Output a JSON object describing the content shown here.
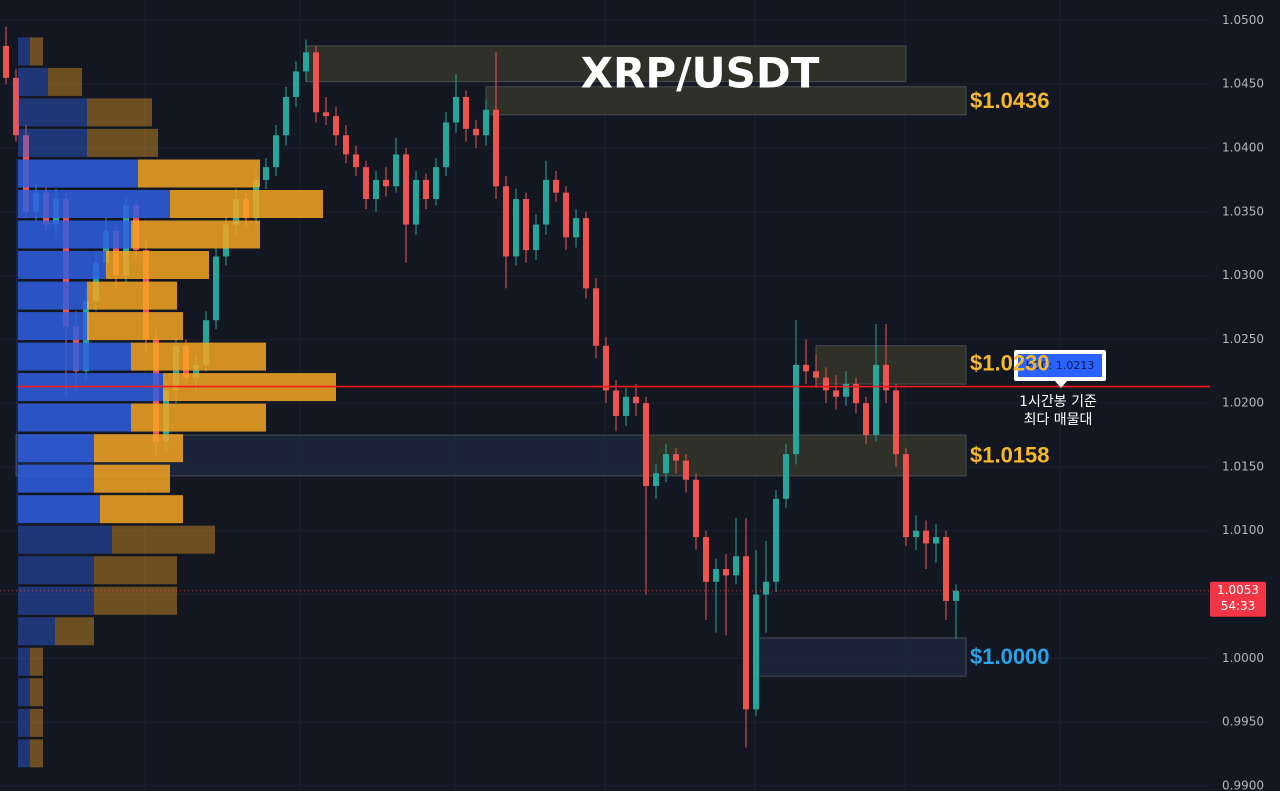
{
  "chart_data": {
    "type": "candlestick",
    "title": "XRP/USDT",
    "up_color": "#26a69a",
    "down_color": "#ef5350",
    "ylim": [
      0.9896,
      1.0516
    ],
    "yticks": [
      {
        "value": 1.05,
        "label": "1.0500"
      },
      {
        "value": 1.045,
        "label": "1.0450"
      },
      {
        "value": 1.04,
        "label": "1.0400"
      },
      {
        "value": 1.035,
        "label": "1.0350"
      },
      {
        "value": 1.03,
        "label": "1.0300"
      },
      {
        "value": 1.025,
        "label": "1.0250"
      },
      {
        "value": 1.02,
        "label": "1.0200"
      },
      {
        "value": 1.015,
        "label": "1.0150"
      },
      {
        "value": 1.01,
        "label": "1.0100"
      },
      {
        "value": 1.005,
        "label": "1.0050"
      },
      {
        "value": 1.0,
        "label": "1.0000"
      },
      {
        "value": 0.995,
        "label": "0.9950"
      },
      {
        "value": 0.99,
        "label": "0.9900"
      }
    ],
    "grid": true,
    "ohlc": [
      [
        1.048,
        1.0495,
        1.045,
        1.0455
      ],
      [
        1.0455,
        1.0462,
        1.0405,
        1.041
      ],
      [
        1.041,
        1.0418,
        1.0345,
        1.035
      ],
      [
        1.035,
        1.0372,
        1.0342,
        1.0365
      ],
      [
        1.0365,
        1.037,
        1.0335,
        1.034
      ],
      [
        1.034,
        1.0368,
        1.033,
        1.036
      ],
      [
        1.036,
        1.0365,
        1.0205,
        1.026
      ],
      [
        1.026,
        1.0272,
        1.021,
        1.0225
      ],
      [
        1.0225,
        1.029,
        1.0218,
        1.028
      ],
      [
        1.028,
        1.0318,
        1.0272,
        1.031
      ],
      [
        1.031,
        1.0345,
        1.03,
        1.0335
      ],
      [
        1.0335,
        1.034,
        1.029,
        1.03
      ],
      [
        1.03,
        1.0362,
        1.0295,
        1.0355
      ],
      [
        1.0355,
        1.036,
        1.0312,
        1.032
      ],
      [
        1.032,
        1.0328,
        1.024,
        1.025
      ],
      [
        1.025,
        1.0258,
        1.0158,
        1.017
      ],
      [
        1.017,
        1.0218,
        1.0162,
        1.021
      ],
      [
        1.021,
        1.0252,
        1.02,
        1.0245
      ],
      [
        1.0245,
        1.025,
        1.0212,
        1.022
      ],
      [
        1.022,
        1.0238,
        1.0208,
        1.023
      ],
      [
        1.023,
        1.0272,
        1.0225,
        1.0265
      ],
      [
        1.0265,
        1.0322,
        1.0258,
        1.0315
      ],
      [
        1.0315,
        1.0348,
        1.0308,
        1.034
      ],
      [
        1.034,
        1.0368,
        1.0332,
        1.036
      ],
      [
        1.036,
        1.0365,
        1.0338,
        1.0345
      ],
      [
        1.0345,
        1.0382,
        1.0338,
        1.0375
      ],
      [
        1.0375,
        1.0392,
        1.0368,
        1.0385
      ],
      [
        1.0385,
        1.0418,
        1.0378,
        1.041
      ],
      [
        1.041,
        1.0448,
        1.0402,
        1.044
      ],
      [
        1.044,
        1.0468,
        1.0432,
        1.046
      ],
      [
        1.046,
        1.0485,
        1.0452,
        1.0475
      ],
      [
        1.0475,
        1.048,
        1.042,
        1.0428
      ],
      [
        1.0428,
        1.044,
        1.0418,
        1.0425
      ],
      [
        1.0425,
        1.0432,
        1.0402,
        1.041
      ],
      [
        1.041,
        1.0418,
        1.0388,
        1.0395
      ],
      [
        1.0395,
        1.0402,
        1.0378,
        1.0385
      ],
      [
        1.0385,
        1.039,
        1.0352,
        1.036
      ],
      [
        1.036,
        1.0382,
        1.035,
        1.0375
      ],
      [
        1.0375,
        1.0385,
        1.0362,
        1.037
      ],
      [
        1.037,
        1.0408,
        1.0365,
        1.0395
      ],
      [
        1.0395,
        1.04,
        1.031,
        1.034
      ],
      [
        1.034,
        1.0382,
        1.0332,
        1.0375
      ],
      [
        1.0375,
        1.038,
        1.0352,
        1.036
      ],
      [
        1.036,
        1.0392,
        1.0355,
        1.0385
      ],
      [
        1.0385,
        1.0428,
        1.0378,
        1.042
      ],
      [
        1.042,
        1.0458,
        1.0412,
        1.044
      ],
      [
        1.044,
        1.0445,
        1.0405,
        1.0415
      ],
      [
        1.0415,
        1.0422,
        1.04,
        1.041
      ],
      [
        1.041,
        1.0438,
        1.0402,
        1.043
      ],
      [
        1.043,
        1.0475,
        1.036,
        1.037
      ],
      [
        1.037,
        1.0378,
        1.029,
        1.0315
      ],
      [
        1.0315,
        1.0368,
        1.0308,
        1.036
      ],
      [
        1.036,
        1.0365,
        1.031,
        1.032
      ],
      [
        1.032,
        1.0348,
        1.0312,
        1.034
      ],
      [
        1.034,
        1.039,
        1.0332,
        1.0375
      ],
      [
        1.0375,
        1.0382,
        1.0358,
        1.0365
      ],
      [
        1.0365,
        1.037,
        1.032,
        1.033
      ],
      [
        1.033,
        1.0352,
        1.0322,
        1.0345
      ],
      [
        1.0345,
        1.035,
        1.0282,
        1.029
      ],
      [
        1.029,
        1.0298,
        1.0235,
        1.0245
      ],
      [
        1.0245,
        1.0252,
        1.02,
        1.021
      ],
      [
        1.021,
        1.0218,
        1.0178,
        1.019
      ],
      [
        1.019,
        1.0212,
        1.0182,
        1.0205
      ],
      [
        1.0205,
        1.0215,
        1.019,
        1.02
      ],
      [
        1.02,
        1.0205,
        1.005,
        1.0135
      ],
      [
        1.0135,
        1.0152,
        1.0125,
        1.0145
      ],
      [
        1.0145,
        1.0168,
        1.0138,
        1.016
      ],
      [
        1.016,
        1.0165,
        1.0145,
        1.0155
      ],
      [
        1.0155,
        1.016,
        1.013,
        1.014
      ],
      [
        1.014,
        1.0145,
        1.0085,
        1.0095
      ],
      [
        1.0095,
        1.01,
        1.003,
        1.006
      ],
      [
        1.006,
        1.0078,
        1.002,
        1.007
      ],
      [
        1.007,
        1.0082,
        1.0018,
        1.0065
      ],
      [
        1.0065,
        1.011,
        1.0058,
        1.008
      ],
      [
        1.008,
        1.011,
        0.993,
        0.996
      ],
      [
        0.996,
        1.0085,
        0.9955,
        1.005
      ],
      [
        1.005,
        1.0092,
        1.002,
        1.006
      ],
      [
        1.006,
        1.0132,
        1.0052,
        1.0125
      ],
      [
        1.0125,
        1.0168,
        1.0118,
        1.016
      ],
      [
        1.016,
        1.0265,
        1.0152,
        1.023
      ],
      [
        1.023,
        1.025,
        1.0215,
        1.0225
      ],
      [
        1.0225,
        1.0238,
        1.0212,
        1.022
      ],
      [
        1.022,
        1.0228,
        1.02,
        1.021
      ],
      [
        1.021,
        1.0222,
        1.0195,
        1.0205
      ],
      [
        1.0205,
        1.0225,
        1.0198,
        1.0215
      ],
      [
        1.0215,
        1.022,
        1.0192,
        1.02
      ],
      [
        1.02,
        1.0205,
        1.0168,
        1.0175
      ],
      [
        1.0175,
        1.0262,
        1.017,
        1.023
      ],
      [
        1.023,
        1.0262,
        1.02,
        1.021
      ],
      [
        1.021,
        1.0215,
        1.015,
        1.016
      ],
      [
        1.016,
        1.0165,
        1.0088,
        1.0095
      ],
      [
        1.0095,
        1.0112,
        1.0085,
        1.01
      ],
      [
        1.01,
        1.0108,
        1.007,
        1.009
      ],
      [
        1.009,
        1.0105,
        1.0075,
        1.0095
      ],
      [
        1.0095,
        1.01,
        1.003,
        1.0045
      ],
      [
        1.0045,
        1.0058,
        1.0015,
        1.0053
      ]
    ],
    "countdown": "54:33",
    "profile": {
      "prices": [
        1.04757,
        1.04518,
        1.04279,
        1.0404,
        1.038,
        1.03561,
        1.03322,
        1.03083,
        1.02843,
        1.02604,
        1.02365,
        1.02126,
        1.01887,
        1.01647,
        1.01408,
        1.01169,
        1.0093,
        1.0069,
        1.00451,
        1.00212,
        0.99973,
        0.99734,
        0.99494,
        0.99255
      ],
      "buy": [
        12,
        30,
        69,
        69,
        120,
        152,
        113,
        88,
        69,
        69,
        113,
        145,
        113,
        76,
        76,
        82,
        94,
        76,
        76,
        37,
        12,
        12,
        12,
        12
      ],
      "sell": [
        13,
        34,
        65,
        71,
        122,
        153,
        129,
        103,
        90,
        96,
        135,
        173,
        135,
        89,
        76,
        83,
        103,
        83,
        83,
        39,
        13,
        13,
        13,
        13
      ],
      "buy_color": "#2f5fe0",
      "sell_color": "#f5a623",
      "value_area": [
        1.0105,
        1.0392
      ]
    },
    "poc": {
      "value": 1.0213,
      "label": "POC: 1.0213",
      "color": "#ff1a1a"
    },
    "poc_note": [
      "1시간봉 기준",
      "최다 매물대"
    ],
    "zones": [
      {
        "low": 1.0452,
        "high": 1.048,
        "start": 30,
        "end": 90,
        "color": "#3a3a2a"
      },
      {
        "low": 1.0426,
        "high": 1.0448,
        "start": 48,
        "end": 96,
        "color": "#3a3a2a"
      },
      {
        "low": 1.0215,
        "high": 1.0245,
        "start": 81,
        "end": 96,
        "color": "#3a3a2a"
      },
      {
        "low": 1.0143,
        "high": 1.0175,
        "start": 64,
        "end": 96,
        "color": "#3a3a2a"
      },
      {
        "low": 1.0143,
        "high": 1.0175,
        "start": 1,
        "end": 64,
        "color": "#1f2a40"
      },
      {
        "low": 0.9986,
        "high": 1.0016,
        "start": 75,
        "end": 96,
        "color": "#1f2a40"
      }
    ],
    "levels": [
      {
        "value": 1.0436,
        "label": "$1.0436",
        "color": "#f7b928"
      },
      {
        "value": 1.023,
        "label": "$1.0230",
        "color": "#f7b928"
      },
      {
        "value": 1.0158,
        "label": "$1.0158",
        "color": "#f7b928"
      },
      {
        "value": 1.0,
        "label": "$1.0000",
        "color": "#29a3e8"
      }
    ]
  }
}
